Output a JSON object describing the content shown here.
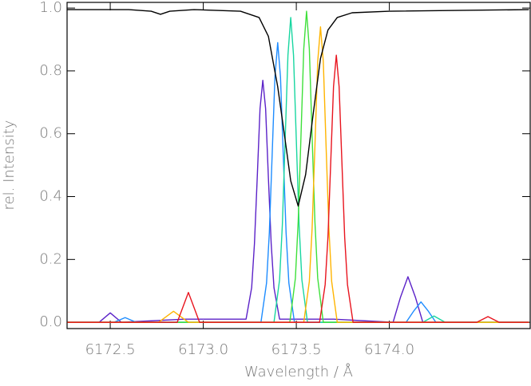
{
  "chart_data": {
    "type": "line",
    "xlabel": "Wavelength / Å",
    "ylabel": "rel. Intensity",
    "xlim": [
      6172.268,
      6174.757
    ],
    "ylim": [
      -0.02,
      1.018
    ],
    "xticks": [
      6172.5,
      {
        "value": 6173.0,
        "label": "6173.0"
      },
      6173.5,
      {
        "value": 6174.0,
        "label": "6174.0"
      }
    ],
    "yticks": [
      {
        "value": 0,
        "label": "0.0"
      },
      0.2,
      0.4,
      0.6,
      0.8,
      {
        "value": 1,
        "label": "1.0"
      }
    ],
    "series": [
      {
        "color": "#5b22c8",
        "x": [
          6172.27,
          6172.44,
          6172.5,
          6172.56,
          6172.9,
          6173.23,
          6173.26,
          6173.275,
          6173.29,
          6173.305,
          6173.32,
          6173.335,
          6173.35,
          6173.365,
          6173.38,
          6173.41,
          6173.7,
          6174.02,
          6174.06,
          6174.1,
          6174.14,
          6174.18,
          6174.75
        ],
        "values": [
          0,
          0,
          0.03,
          0,
          0.01,
          0.01,
          0.11,
          0.25,
          0.46,
          0.68,
          0.77,
          0.68,
          0.46,
          0.25,
          0.11,
          0.01,
          0.01,
          0,
          0.08,
          0.145,
          0.08,
          0,
          0
        ]
      },
      {
        "color": "#1e8cff",
        "x": [
          6172.27,
          6172.52,
          6172.58,
          6172.64,
          6173.31,
          6173.34,
          6173.355,
          6173.37,
          6173.385,
          6173.4,
          6173.415,
          6173.43,
          6173.445,
          6173.46,
          6173.49,
          6174.09,
          6174.13,
          6174.17,
          6174.21,
          6174.25,
          6174.75
        ],
        "values": [
          0,
          0,
          0.015,
          0,
          0,
          0.125,
          0.285,
          0.53,
          0.78,
          0.89,
          0.78,
          0.53,
          0.285,
          0.125,
          0,
          0,
          0.035,
          0.065,
          0.035,
          0,
          0
        ]
      },
      {
        "color": "#18d6a0",
        "x": [
          6172.27,
          6173.38,
          6173.41,
          6173.425,
          6173.44,
          6173.455,
          6173.47,
          6173.485,
          6173.5,
          6173.515,
          6173.53,
          6173.56,
          6174.18,
          6174.24,
          6174.3,
          6174.75
        ],
        "values": [
          0,
          0,
          0.135,
          0.31,
          0.58,
          0.85,
          0.97,
          0.85,
          0.58,
          0.31,
          0.135,
          0,
          0,
          0.02,
          0,
          0
        ]
      },
      {
        "color": "#3ee03a",
        "x": [
          6172.27,
          6173.465,
          6173.495,
          6173.51,
          6173.525,
          6173.54,
          6173.555,
          6173.57,
          6173.585,
          6173.6,
          6173.615,
          6173.645,
          6174.75
        ],
        "values": [
          0,
          0,
          0.14,
          0.32,
          0.59,
          0.87,
          0.99,
          0.87,
          0.59,
          0.32,
          0.14,
          0,
          0
        ]
      },
      {
        "color": "#ffb400",
        "x": [
          6172.27,
          6172.76,
          6172.84,
          6172.92,
          6173.54,
          6173.57,
          6173.585,
          6173.6,
          6173.615,
          6173.63,
          6173.645,
          6173.66,
          6173.675,
          6173.69,
          6173.72,
          6174.75
        ],
        "values": [
          0,
          0,
          0.035,
          0,
          0,
          0.13,
          0.3,
          0.56,
          0.83,
          0.94,
          0.83,
          0.56,
          0.3,
          0.13,
          0,
          0
        ]
      },
      {
        "color": "#e8141e",
        "x": [
          6172.27,
          6172.86,
          6172.92,
          6172.98,
          6173.625,
          6173.655,
          6173.67,
          6173.685,
          6173.7,
          6173.715,
          6173.73,
          6173.745,
          6173.76,
          6173.775,
          6173.805,
          6174.47,
          6174.53,
          6174.59,
          6174.75
        ],
        "values": [
          0,
          0,
          0.095,
          0,
          0,
          0.12,
          0.27,
          0.51,
          0.75,
          0.85,
          0.75,
          0.51,
          0.27,
          0.12,
          0,
          0,
          0.018,
          0,
          0
        ]
      },
      {
        "color": "#000000",
        "x": [
          6172.27,
          6172.6,
          6172.72,
          6172.77,
          6172.82,
          6172.95,
          6173.2,
          6173.3,
          6173.35,
          6173.4,
          6173.44,
          6173.47,
          6173.51,
          6173.55,
          6173.59,
          6173.63,
          6173.67,
          6173.72,
          6173.8,
          6174.0,
          6174.75
        ],
        "values": [
          0.995,
          0.995,
          0.99,
          0.98,
          0.99,
          0.995,
          0.99,
          0.97,
          0.91,
          0.75,
          0.58,
          0.45,
          0.37,
          0.47,
          0.66,
          0.84,
          0.93,
          0.97,
          0.985,
          0.99,
          0.995
        ]
      }
    ]
  }
}
